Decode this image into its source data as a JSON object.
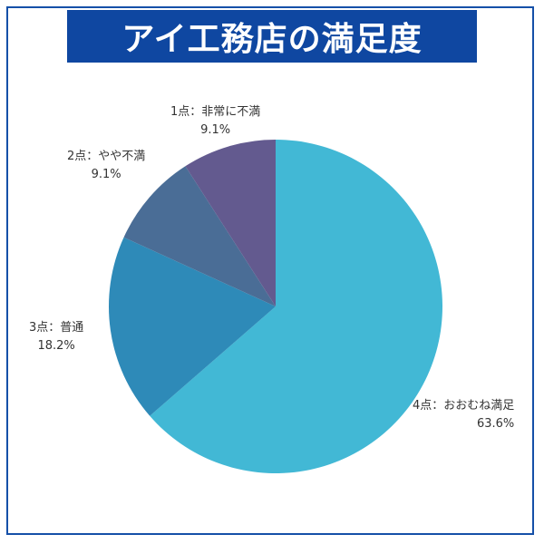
{
  "chart_data": {
    "type": "pie",
    "title": "アイ工務店の満足度",
    "slices": [
      {
        "label": "4点：おおむね満足",
        "value": 63.6,
        "display": "63.6%",
        "color": "#42b8d5"
      },
      {
        "label": "3点：普通",
        "value": 18.2,
        "display": "18.2%",
        "color": "#2e8ab8"
      },
      {
        "label": "2点：やや不満",
        "value": 9.1,
        "display": "9.1%",
        "color": "#4a6d96"
      },
      {
        "label": "1点：非常に不満",
        "value": 9.1,
        "display": "9.1%",
        "color": "#635a8f"
      }
    ],
    "legend": "none",
    "start_angle_deg": 0,
    "direction": "clockwise"
  },
  "colors": {
    "banner": "#0f47a1",
    "frame": "#1550a8"
  }
}
